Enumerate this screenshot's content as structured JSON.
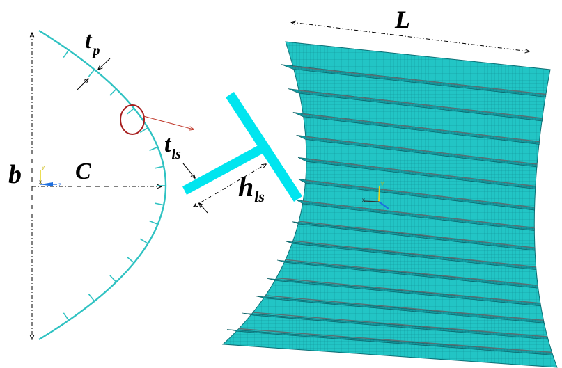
{
  "labels": {
    "plate_thickness": "t",
    "plate_thickness_sub": "p",
    "panel_width": "b",
    "curvature_depth": "C",
    "stiffener_thickness": "t",
    "stiffener_thickness_sub": "ls",
    "stiffener_height": "h",
    "stiffener_height_sub": "ls",
    "panel_length": "L"
  },
  "axis_triad": {
    "x": "x",
    "y": "y",
    "z": "z"
  },
  "colors": {
    "mesh_fill": "#20c4c4",
    "mesh_dark": "#0f7f86",
    "stiffener_section": "#00e5ef",
    "highlight_circle": "#a61c1c",
    "dimension_line": "#000000"
  }
}
